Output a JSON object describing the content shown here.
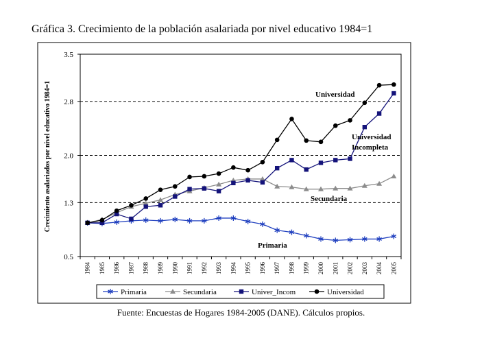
{
  "page": {
    "title": "Gráfica 3. Crecimiento de la población asalariada por nivel educativo 1984=1",
    "source": "Fuente: Encuestas de Hogares 1984-2005 (DANE). Cálculos propios."
  },
  "chart_data": {
    "type": "line",
    "title": "Gráfica 3. Crecimiento de la población asalariada por nivel educativo 1984=1",
    "xlabel": "",
    "ylabel": "Crecimiento asalariados por nivel educativo 1984=1",
    "ylim": [
      0.5,
      3.5
    ],
    "yticks": [
      0.5,
      1.3,
      2.0,
      2.8,
      3.5
    ],
    "ytick_labels": [
      "0.5",
      "1.3",
      "2.0",
      "2.8",
      "3.5"
    ],
    "gridlines_dashed_at": [
      1.3,
      2.0,
      2.8
    ],
    "categories": [
      "1984",
      "1985",
      "1986",
      "1987",
      "1988",
      "1989",
      "1990",
      "1991",
      "1992",
      "1993",
      "1994",
      "1995",
      "1996",
      "1997",
      "1998",
      "1999",
      "2000",
      "2001",
      "2002",
      "2003",
      "2004",
      "2005"
    ],
    "legend_position": "bottom",
    "series": [
      {
        "name": "Primaria",
        "marker": "star",
        "color": "#1f3fbf",
        "values": [
          1.0,
          0.99,
          1.01,
          1.03,
          1.04,
          1.03,
          1.05,
          1.03,
          1.03,
          1.07,
          1.07,
          1.02,
          0.98,
          0.89,
          0.86,
          0.81,
          0.76,
          0.74,
          0.75,
          0.76,
          0.76,
          0.8
        ]
      },
      {
        "name": "Secundaria",
        "marker": "triangle",
        "color": "#8c8c8c",
        "values": [
          1.0,
          1.05,
          1.15,
          1.24,
          1.29,
          1.34,
          1.42,
          1.47,
          1.52,
          1.57,
          1.63,
          1.65,
          1.65,
          1.54,
          1.53,
          1.5,
          1.5,
          1.51,
          1.51,
          1.55,
          1.58,
          1.69
        ]
      },
      {
        "name": "Univer_Incom",
        "marker": "square",
        "color": "#14137a",
        "values": [
          1.0,
          1.0,
          1.13,
          1.06,
          1.24,
          1.26,
          1.39,
          1.5,
          1.51,
          1.47,
          1.59,
          1.63,
          1.6,
          1.81,
          1.93,
          1.79,
          1.89,
          1.93,
          1.95,
          2.42,
          2.62,
          2.92
        ]
      },
      {
        "name": "Universidad",
        "marker": "circle",
        "color": "#000000",
        "values": [
          1.0,
          1.04,
          1.18,
          1.26,
          1.36,
          1.49,
          1.54,
          1.68,
          1.69,
          1.73,
          1.82,
          1.78,
          1.9,
          2.23,
          2.54,
          2.22,
          2.2,
          2.44,
          2.52,
          2.78,
          3.04,
          3.05
        ]
      }
    ],
    "annotations": [
      {
        "text": "Universidad",
        "series": "Universidad"
      },
      {
        "text": "Universidad",
        "series": "Univer_Incom"
      },
      {
        "text": "Incompleta",
        "series": "Univer_Incom"
      },
      {
        "text": "Secundaria",
        "series": "Secundaria"
      },
      {
        "text": "Primaria",
        "series": "Primaria"
      }
    ]
  }
}
